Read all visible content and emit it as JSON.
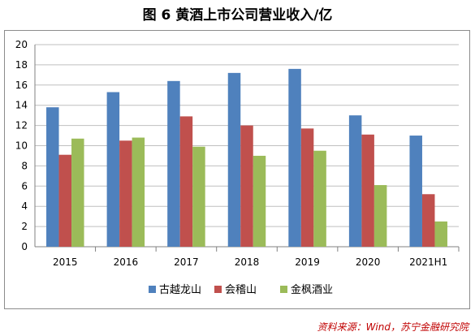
{
  "title": "图 6  黄酒上市公司营业收入/亿",
  "source": "资料来源：Wind，苏宁金融研究院",
  "chart_data": {
    "type": "bar",
    "categories": [
      "2015",
      "2016",
      "2017",
      "2018",
      "2019",
      "2020",
      "2021H1"
    ],
    "series": [
      {
        "name": "古越龙山",
        "color": "#4f81bd",
        "values": [
          13.8,
          15.3,
          16.4,
          17.2,
          17.6,
          13.0,
          11.0
        ]
      },
      {
        "name": "会稽山",
        "color": "#c0504d",
        "values": [
          9.1,
          10.5,
          12.9,
          12.0,
          11.7,
          11.1,
          5.2
        ]
      },
      {
        "name": "金枫酒业",
        "color": "#9bbb59",
        "values": [
          10.7,
          10.8,
          9.9,
          9.0,
          9.5,
          6.1,
          2.5
        ]
      }
    ],
    "ylim": [
      0,
      20
    ],
    "yticks": [
      0,
      2,
      4,
      6,
      8,
      10,
      12,
      14,
      16,
      18,
      20
    ],
    "grid": true,
    "legend": "bottom"
  }
}
